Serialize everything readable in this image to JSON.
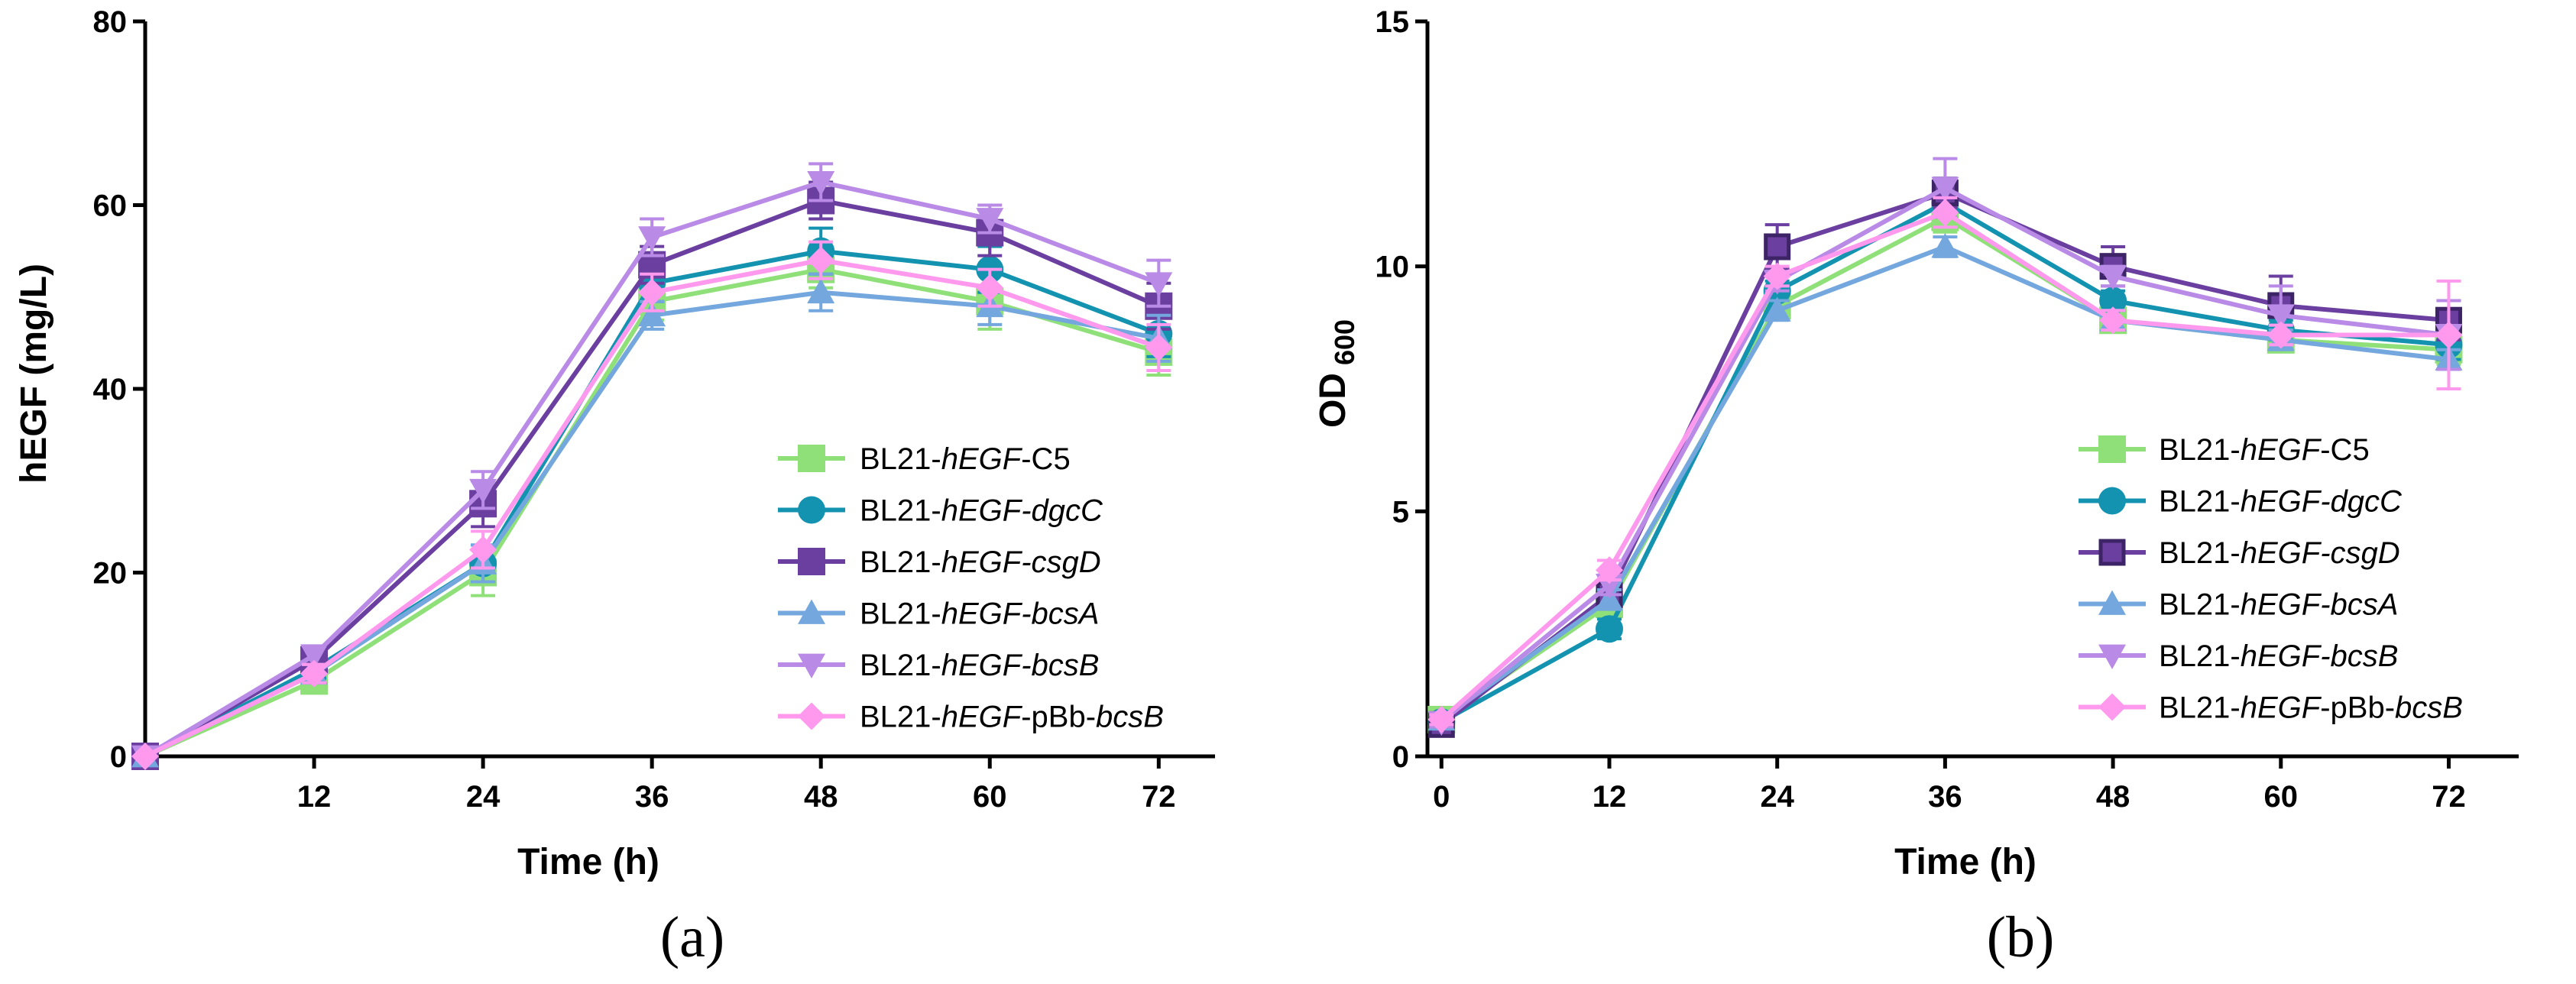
{
  "chart_data": [
    {
      "type": "line",
      "panel_label": "(a)",
      "xlabel": "Time (h)",
      "ylabel": "hEGF (mg/L)",
      "xlim": [
        0,
        76
      ],
      "ylim": [
        0,
        80
      ],
      "xticks": [
        12,
        24,
        36,
        48,
        60,
        72
      ],
      "xtick_labels": [
        "12",
        "24",
        "36",
        "48",
        "60",
        "72"
      ],
      "yticks": [
        0,
        20,
        40,
        60,
        80
      ],
      "ytick_labels": [
        "0",
        "20",
        "40",
        "60",
        "80"
      ],
      "x": [
        0,
        12,
        24,
        36,
        48,
        60,
        72
      ],
      "legend_position": "bottom-right",
      "series": [
        {
          "name": "BL21-hEGF-C5",
          "label_prefix": "BL21-",
          "label_italic": "hEGF",
          "label_suffix": "-C5",
          "color": "#90E07A",
          "marker": "square",
          "values": [
            0,
            8.2,
            20,
            49.5,
            53,
            49.5,
            44
          ],
          "errors": [
            0,
            1,
            2.5,
            2,
            2,
            3,
            2.5
          ]
        },
        {
          "name": "BL21-hEGF-dgcC",
          "label_prefix": "BL21-",
          "label_italic": "hEGF-dgcC",
          "label_suffix": "",
          "color": "#1393B0",
          "marker": "circle",
          "values": [
            0,
            9.5,
            21,
            51.5,
            55,
            53,
            46
          ],
          "errors": [
            0,
            1,
            2,
            2,
            2.5,
            2.5,
            2.5
          ]
        },
        {
          "name": "BL21-hEGF-csgD",
          "label_prefix": "BL21-",
          "label_italic": "hEGF-csgD",
          "label_suffix": "",
          "color": "#6B3FA0",
          "marker": "square",
          "values": [
            0,
            10.5,
            27.5,
            53.5,
            60.5,
            57,
            49
          ],
          "errors": [
            0,
            1,
            2.5,
            2,
            2,
            2.5,
            2.5
          ]
        },
        {
          "name": "BL21-hEGF-bcsA",
          "label_prefix": "BL21-",
          "label_italic": "hEGF-bcsA",
          "label_suffix": "",
          "color": "#74A7DE",
          "marker": "triangle-up",
          "values": [
            0,
            9,
            21,
            48,
            50.5,
            49,
            45.5
          ],
          "errors": [
            0,
            1,
            2,
            1.5,
            2,
            2,
            2.5
          ]
        },
        {
          "name": "BL21-hEGF-bcsB",
          "label_prefix": "BL21-",
          "label_italic": "hEGF-bcsB",
          "label_suffix": "",
          "color": "#B98AE6",
          "marker": "triangle-down",
          "values": [
            0,
            11,
            29,
            56.5,
            62.5,
            58.5,
            51.5
          ],
          "errors": [
            0,
            1,
            2,
            2,
            2,
            1.5,
            2.5
          ]
        },
        {
          "name": "BL21-hEGF-pBb-bcsB",
          "label_prefix": "BL21-",
          "label_italic": "hEGF",
          "label_suffix": "-pBb-",
          "label_italic2": "bcsB",
          "color": "#FF99EE",
          "marker": "diamond",
          "values": [
            0,
            9,
            22.5,
            50.5,
            54,
            51,
            44.5
          ],
          "errors": [
            0,
            1,
            2,
            2,
            2,
            2,
            2.5
          ]
        }
      ]
    },
    {
      "type": "line",
      "panel_label": "(b)",
      "xlabel": "Time (h)",
      "ylabel": "OD",
      "ylabel_sub": "600",
      "xlim": [
        -1,
        77
      ],
      "ylim": [
        0,
        15
      ],
      "xticks": [
        0,
        12,
        24,
        36,
        48,
        60,
        72
      ],
      "xtick_labels": [
        "0",
        "12",
        "24",
        "36",
        "48",
        "60",
        "72"
      ],
      "yticks": [
        0,
        5,
        10,
        15
      ],
      "ytick_labels": [
        "0",
        "5",
        "10",
        "15"
      ],
      "x": [
        0,
        12,
        24,
        36,
        48,
        60,
        72
      ],
      "legend_position": "bottom-right",
      "series": [
        {
          "name": "BL21-hEGF-C5",
          "label_prefix": "BL21-",
          "label_italic": "hEGF",
          "label_suffix": "-C5",
          "color": "#90E07A",
          "marker": "square",
          "values": [
            0.75,
            3.1,
            9.2,
            11,
            8.9,
            8.5,
            8.3
          ],
          "errors": [
            0.1,
            0.2,
            0.2,
            0.3,
            0.2,
            0.2,
            0.3
          ]
        },
        {
          "name": "BL21-hEGF-dgcC",
          "label_prefix": "BL21-",
          "label_italic": "hEGF-dgcC",
          "label_suffix": "",
          "color": "#1393B0",
          "marker": "circle",
          "values": [
            0.7,
            2.6,
            9.5,
            11.3,
            9.3,
            8.7,
            8.4
          ],
          "errors": [
            0.1,
            0.2,
            0.2,
            0.3,
            0.2,
            0.2,
            0.3
          ]
        },
        {
          "name": "BL21-hEGF-csgD",
          "label_prefix": "BL21-",
          "label_italic": "hEGF-csgD",
          "label_suffix": "",
          "color": "#6B3FA0",
          "marker": "square-open",
          "values": [
            0.65,
            3.3,
            10.4,
            11.5,
            10,
            9.2,
            8.9
          ],
          "errors": [
            0.1,
            0.2,
            0.45,
            0.3,
            0.4,
            0.6,
            0.4
          ]
        },
        {
          "name": "BL21-hEGF-bcsA",
          "label_prefix": "BL21-",
          "label_italic": "hEGF-bcsA",
          "label_suffix": "",
          "color": "#74A7DE",
          "marker": "triangle-up",
          "values": [
            0.75,
            3.2,
            9.1,
            10.4,
            8.9,
            8.5,
            8.1
          ],
          "errors": [
            0.1,
            0.2,
            0.2,
            0.2,
            0.2,
            0.2,
            0.2
          ]
        },
        {
          "name": "BL21-hEGF-bcsB",
          "label_prefix": "BL21-",
          "label_italic": "hEGF-bcsB",
          "label_suffix": "",
          "color": "#B98AE6",
          "marker": "triangle-down",
          "values": [
            0.7,
            3.5,
            9.7,
            11.6,
            9.8,
            9.0,
            8.6
          ],
          "errors": [
            0.1,
            0.2,
            0.2,
            0.6,
            0.2,
            0.6,
            0.7
          ]
        },
        {
          "name": "BL21-hEGF-pBb-bcsB",
          "label_prefix": "BL21-",
          "label_italic": "hEGF",
          "label_suffix": "-pBb-",
          "label_italic2": "bcsB",
          "color": "#FF99EE",
          "marker": "diamond",
          "values": [
            0.75,
            3.8,
            9.8,
            11.1,
            8.9,
            8.6,
            8.6
          ],
          "errors": [
            0.1,
            0.2,
            0.2,
            0.3,
            0.2,
            0.2,
            1.1
          ]
        }
      ]
    }
  ]
}
